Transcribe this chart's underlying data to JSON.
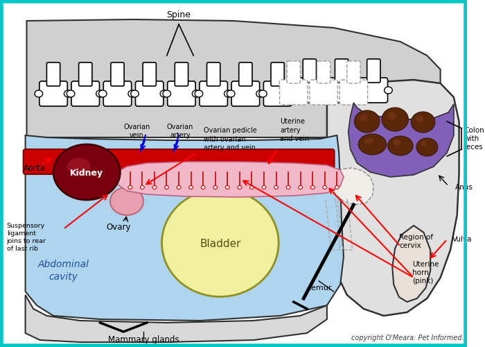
{
  "bg_color": "#ffffff",
  "copyright": "copyright O'Meara: Pet Informed.",
  "labels": {
    "spine": "Spine",
    "aorta": "Aorta",
    "ovarian_vein": "Ovarian\nvein",
    "ovarian_artery": "Ovarian\nartery",
    "kidney": "Kidney",
    "ovary": "Ovary",
    "suspensory": "Suspensory\nligament\njoins to rear\nof last rib",
    "ovarian_pedicle": "Ovarian pedicle\nwith ovarian\nartery and vein",
    "uterine_av": "Uterine\nartery\nand vein",
    "bladder": "Bladder",
    "abdominal": "Abdominal\ncavity",
    "colon": "Colon\nwith\nfeces",
    "anus": "Anus",
    "vulva": "Vulva",
    "cervix": "Region of\ncervix",
    "uterine_horn": "Uterine\nhorn\n(pink)",
    "femur": "femur",
    "mammary": "Mammary glands"
  },
  "colors": {
    "border_color": "#00c8c8",
    "light_blue": "#aed4ee",
    "aorta_red": "#cc0000",
    "kidney_dark": "#7a0010",
    "ovary_pink": "#e8a0b0",
    "uterine_horn_pink": "#f0b8c8",
    "bladder_yellow": "#f0f0a0",
    "colon_brown": "#5a2808",
    "colon_purple": "#8060b8",
    "spine_gray": "#d0d0d0",
    "body_outline": "#303030",
    "red_arrow": "#ff0000",
    "blue_line": "#0000dd",
    "pelvis_gray": "#e0e0e0",
    "mammary_gray": "#d8d8d8"
  }
}
